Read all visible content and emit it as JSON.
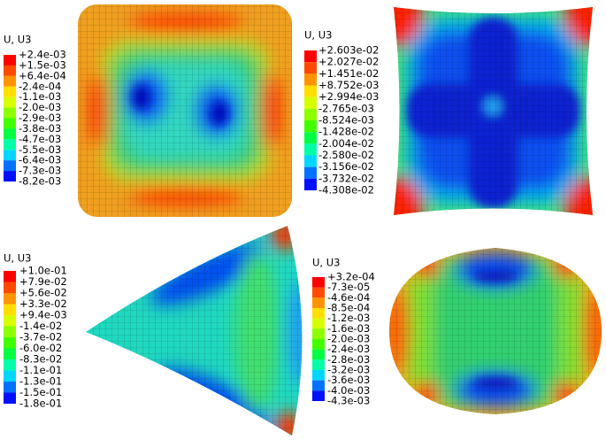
{
  "legend_colors": [
    "#ff0000",
    "#ff4a00",
    "#ff9400",
    "#ffde00",
    "#d6ff00",
    "#8cff00",
    "#42ff00",
    "#00ff42",
    "#00ffa8",
    "#00d6ff",
    "#0072ff",
    "#0010ff"
  ],
  "panels": [
    {
      "title": "U, U3",
      "labels": [
        "+2.4e-03",
        "+1.5e-03",
        "+6.4e-04",
        "-2.4e-04",
        "-1.1e-03",
        "-2.0e-03",
        "-2.9e-03",
        "-3.8e-03",
        "-4.7e-03",
        "-5.5e-03",
        "-6.4e-03",
        "-7.3e-03",
        "-8.2e-03"
      ]
    },
    {
      "title": "U, U3",
      "labels": [
        "+2.603e-02",
        "+2.027e-02",
        "+1.451e-02",
        "+8.752e-03",
        "+2.994e-03",
        "-2.765e-03",
        "-8.524e-03",
        "-1.428e-02",
        "-2.004e-02",
        "-2.580e-02",
        "-3.156e-02",
        "-3.732e-02",
        "-4.308e-02"
      ]
    },
    {
      "title": "U, U3",
      "labels": [
        "+1.0e-01",
        "+7.9e-02",
        "+5.6e-02",
        "+3.3e-02",
        "+9.4e-03",
        "-1.4e-02",
        "-3.7e-02",
        "-6.0e-02",
        "-8.3e-02",
        "-1.1e-01",
        "-1.3e-01",
        "-1.5e-01",
        "-1.8e-01"
      ]
    },
    {
      "title": "U, U3",
      "labels": [
        "+3.2e-04",
        "-7.3e-05",
        "-4.6e-04",
        "-8.5e-04",
        "-1.2e-03",
        "-1.6e-03",
        "-2.0e-03",
        "-2.4e-03",
        "-2.8e-03",
        "-3.2e-03",
        "-3.6e-03",
        "-4.0e-03",
        "-4.3e-03"
      ]
    }
  ]
}
